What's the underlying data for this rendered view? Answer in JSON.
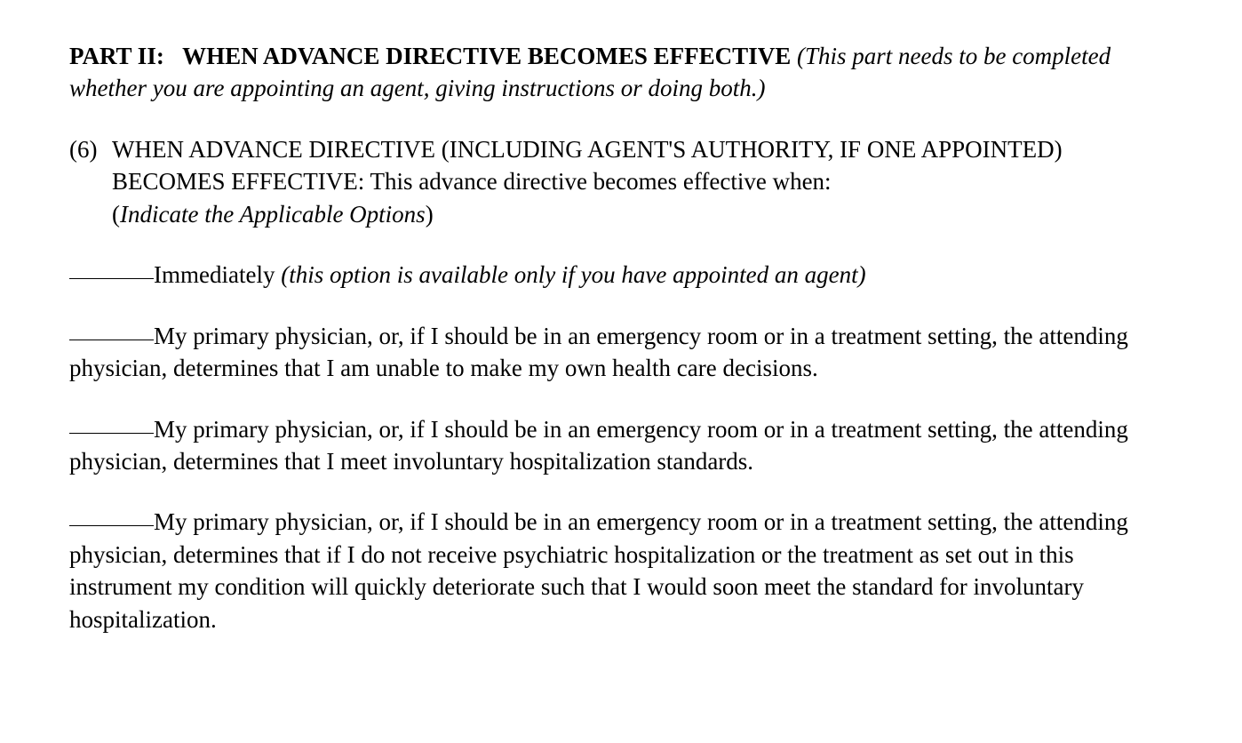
{
  "header": {
    "part_label": "PART II:",
    "part_title": "WHEN ADVANCE DIRECTIVE BECOMES EFFECTIVE",
    "part_note": "(This part needs to be completed whether you are appointing an agent, giving instructions or doing both.)"
  },
  "section": {
    "number": "(6)",
    "heading": "WHEN ADVANCE DIRECTIVE (INCLUDING AGENT'S AUTHORITY, IF ONE APPOINTED) BECOMES EFFECTIVE:",
    "lead_in": " This advance directive becomes effective when:",
    "instruction_open": "(",
    "instruction_text": "Indicate the Applicable Options",
    "instruction_close": ")"
  },
  "options": {
    "opt1_label": "Immediately ",
    "opt1_note": "(this option is available only if you have appointed an agent)",
    "opt2_text": "My primary physician, or, if I should be in an emergency room or in a treatment setting, the attending physician, determines that I am unable to make my own health care decisions.",
    "opt3_text": "My primary physician, or, if I should be in an emergency room or in a treatment setting, the attending physician, determines that I meet involuntary hospitalization standards.",
    "opt4_text": "My primary physician, or, if I should be in an emergency room or in a treatment setting, the attending physician, determines that if I do not receive psychiatric hospitalization or the treatment as set out in this instrument my condition will quickly deteriorate such that I would soon meet the standard for involuntary hospitalization."
  }
}
